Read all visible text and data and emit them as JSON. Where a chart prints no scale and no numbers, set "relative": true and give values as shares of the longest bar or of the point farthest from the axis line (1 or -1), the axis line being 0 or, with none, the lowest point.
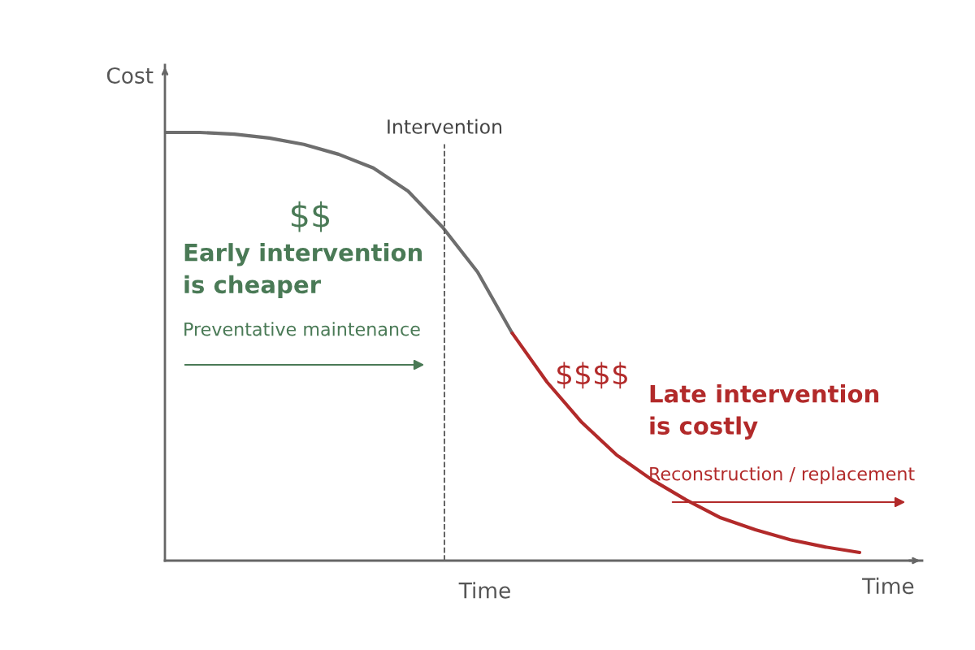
{
  "chart_data": {
    "type": "line",
    "relative": true,
    "xlabel": "Time",
    "ylabel": "Cost",
    "categories": [
      null,
      null,
      null,
      null,
      null,
      null,
      null,
      null,
      null,
      null,
      null,
      null,
      null,
      null,
      null,
      null,
      null,
      null,
      null,
      null,
      null
    ],
    "series": [
      {
        "color": "#6e6e6e",
        "values": [
          1,
          1,
          0.996,
          0.987,
          0.972,
          0.949,
          0.917,
          0.863,
          0.778,
          0.674,
          0.531,
          null,
          null,
          null,
          null,
          null,
          null,
          null,
          null,
          null,
          null
        ]
      },
      {
        "color": "#b22a2a",
        "values": [
          null,
          null,
          null,
          null,
          null,
          null,
          null,
          null,
          null,
          null,
          0.531,
          0.417,
          0.323,
          0.247,
          0.19,
          0.142,
          0.1,
          0.072,
          0.049,
          0.032,
          0.019
        ]
      }
    ],
    "annotations": [
      "Intervention",
      "$$",
      "Early intervention\nis cheaper",
      "Preventative maintenance",
      "$$$$",
      "Late intervention\nis costly",
      "Reconstruction / replacement",
      "Time"
    ],
    "grid": false,
    "legend": false,
    "marker": "none",
    "line_style": "solid"
  }
}
